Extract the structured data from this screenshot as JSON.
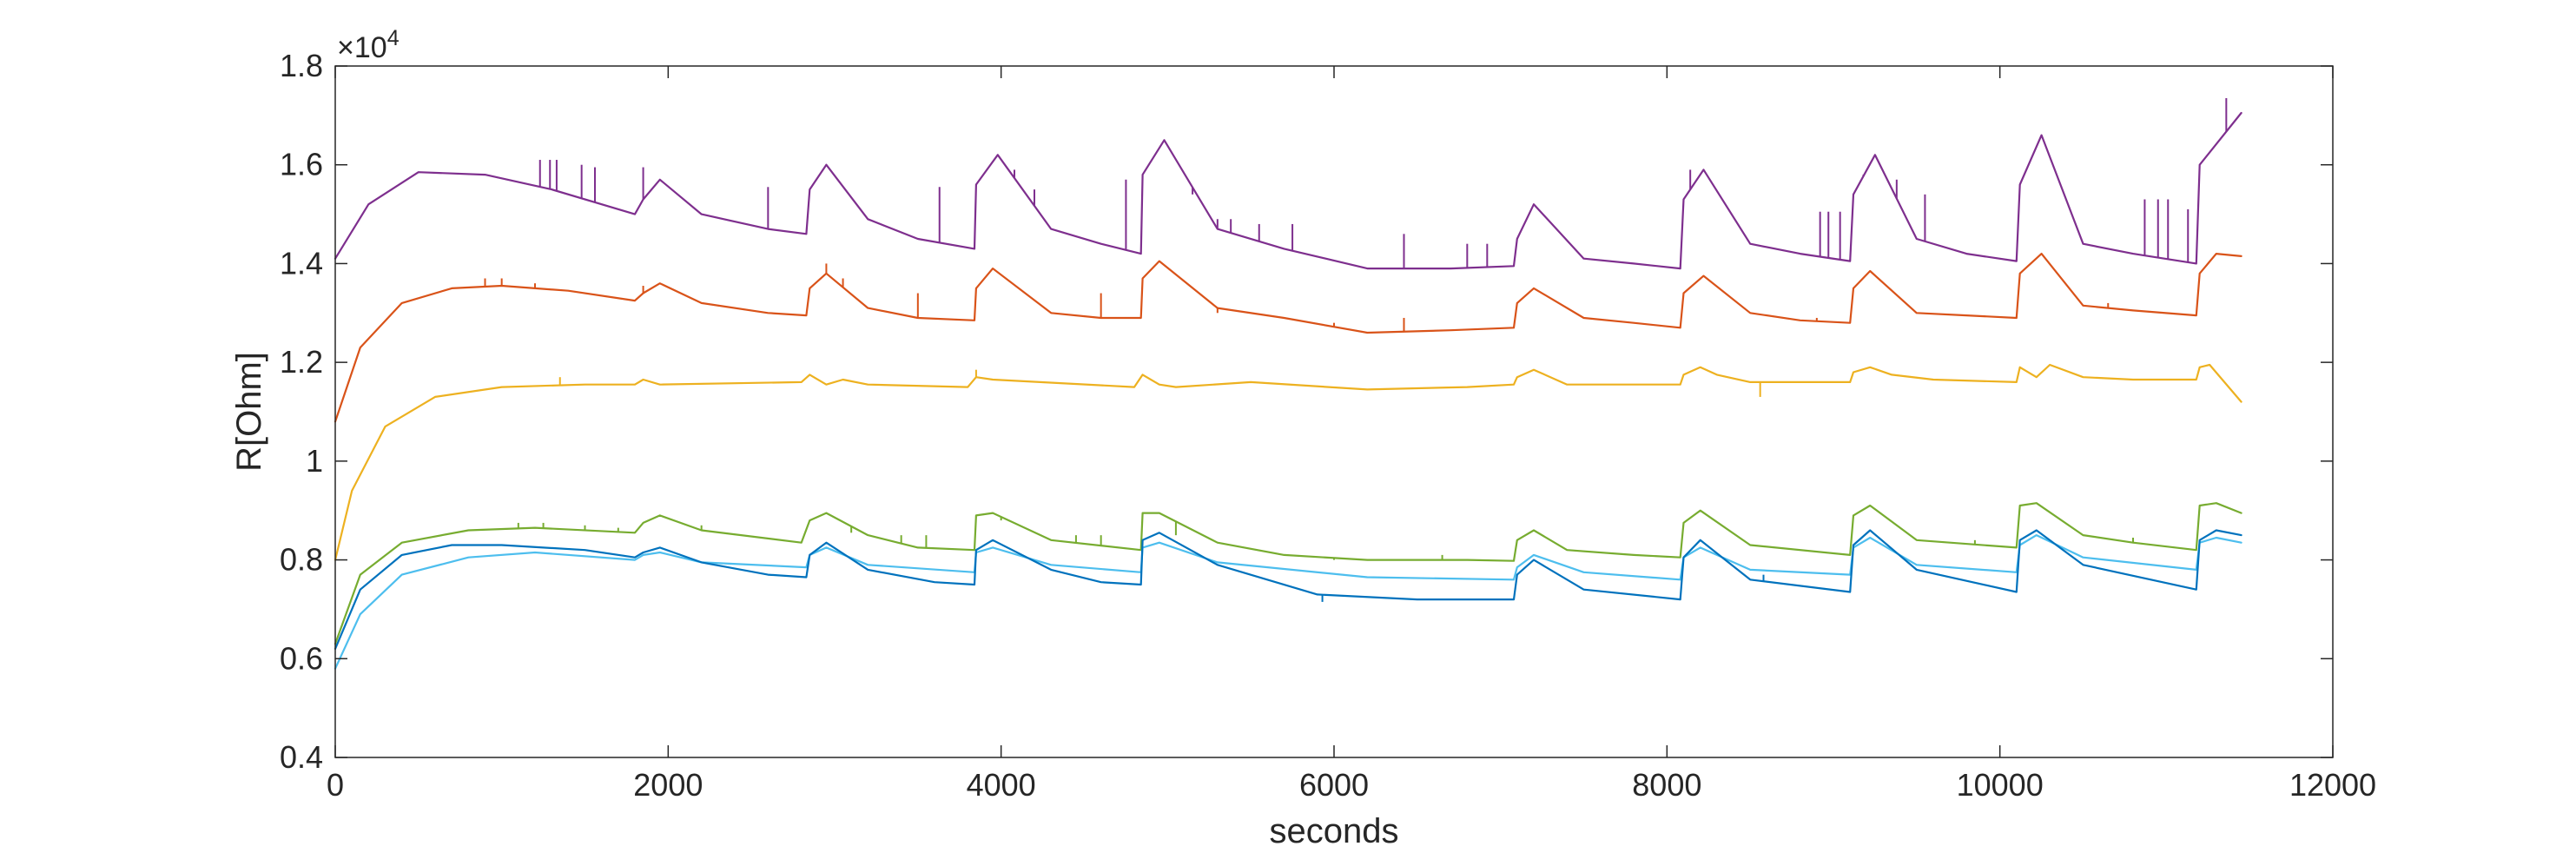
{
  "chart_data": {
    "type": "line",
    "title": "",
    "xlabel": "seconds",
    "ylabel": "R[Ohm]",
    "xlim": [
      0,
      12000
    ],
    "ylim": [
      4000,
      18000
    ],
    "xticks": [
      0,
      2000,
      4000,
      6000,
      8000,
      10000,
      12000
    ],
    "xtick_labels": [
      "0",
      "2000",
      "4000",
      "6000",
      "8000",
      "10000",
      "12000"
    ],
    "yticks": [
      4000,
      6000,
      8000,
      10000,
      12000,
      14000,
      16000,
      18000
    ],
    "ytick_labels": [
      "0.4",
      "0.6",
      "0.8",
      "1",
      "1.2",
      "1.4",
      "1.6",
      "1.8"
    ],
    "y_exponent": {
      "base": "×10",
      "power": "4"
    },
    "grid": false,
    "legend": "none",
    "pulse_times": [
      1850,
      2850,
      3850,
      4850,
      7100,
      8100,
      9120,
      10120,
      11200
    ],
    "series": [
      {
        "color": "#7e2f8e",
        "x": [
          0,
          200,
          500,
          900,
          1300,
          1800,
          1850,
          1950,
          2200,
          2600,
          2830,
          2850,
          2950,
          3200,
          3500,
          3840,
          3850,
          3980,
          4300,
          4600,
          4840,
          4850,
          4980,
          5300,
          5700,
          6200,
          6700,
          7080,
          7100,
          7200,
          7500,
          7800,
          8080,
          8100,
          8220,
          8500,
          8800,
          9100,
          9120,
          9250,
          9500,
          9800,
          10100,
          10120,
          10250,
          10500,
          10800,
          11180,
          11200,
          11450
        ],
        "y": [
          14100,
          15200,
          15850,
          15800,
          15500,
          15000,
          15300,
          15700,
          15000,
          14700,
          14600,
          15500,
          16000,
          14900,
          14500,
          14300,
          15600,
          16200,
          14700,
          14400,
          14200,
          15800,
          16500,
          14700,
          14300,
          13900,
          13900,
          13950,
          14500,
          15200,
          14100,
          14000,
          13900,
          15300,
          15900,
          14400,
          14200,
          14050,
          15400,
          16200,
          14500,
          14200,
          14050,
          15600,
          16600,
          14400,
          14200,
          14000,
          16000,
          17050
        ],
        "spikes": [
          [
            1230,
            16100
          ],
          [
            1290,
            16100
          ],
          [
            1330,
            16100
          ],
          [
            1480,
            16000
          ],
          [
            1560,
            15950
          ],
          [
            1850,
            15950
          ],
          [
            2600,
            15550
          ],
          [
            3630,
            15550
          ],
          [
            4080,
            15900
          ],
          [
            4200,
            15500
          ],
          [
            4750,
            15700
          ],
          [
            5150,
            15400
          ],
          [
            5300,
            14900
          ],
          [
            5380,
            14900
          ],
          [
            5550,
            14800
          ],
          [
            5750,
            14800
          ],
          [
            6420,
            14600
          ],
          [
            6800,
            14400
          ],
          [
            6920,
            14400
          ],
          [
            8140,
            15900
          ],
          [
            8920,
            15050
          ],
          [
            8970,
            15050
          ],
          [
            9040,
            15050
          ],
          [
            9180,
            15800
          ],
          [
            9380,
            15700
          ],
          [
            9550,
            15400
          ],
          [
            10870,
            15300
          ],
          [
            10950,
            15300
          ],
          [
            11010,
            15300
          ],
          [
            11130,
            15100
          ],
          [
            11360,
            17350
          ]
        ]
      },
      {
        "color": "#d95319",
        "x": [
          0,
          150,
          400,
          700,
          1000,
          1400,
          1800,
          1850,
          1950,
          2200,
          2600,
          2830,
          2850,
          2950,
          3200,
          3500,
          3840,
          3850,
          3950,
          4300,
          4600,
          4840,
          4850,
          4950,
          5300,
          5700,
          6200,
          6700,
          7080,
          7100,
          7200,
          7500,
          7800,
          8080,
          8100,
          8220,
          8500,
          8800,
          9100,
          9120,
          9220,
          9500,
          9800,
          10100,
          10120,
          10250,
          10500,
          10800,
          11180,
          11200,
          11300,
          11450
        ],
        "y": [
          10800,
          12300,
          13200,
          13500,
          13550,
          13450,
          13250,
          13400,
          13600,
          13200,
          13000,
          12950,
          13500,
          13800,
          13100,
          12900,
          12850,
          13500,
          13900,
          13000,
          12900,
          12900,
          13700,
          14050,
          13100,
          12900,
          12600,
          12650,
          12700,
          13200,
          13500,
          12900,
          12800,
          12700,
          13400,
          13750,
          13000,
          12850,
          12800,
          13500,
          13850,
          13000,
          12950,
          12900,
          13800,
          14200,
          13150,
          13050,
          12950,
          13800,
          14200,
          14150
        ],
        "spikes": [
          [
            900,
            13700
          ],
          [
            1000,
            13700
          ],
          [
            1200,
            13600
          ],
          [
            1850,
            13550
          ],
          [
            2950,
            14000
          ],
          [
            3050,
            13700
          ],
          [
            3500,
            13400
          ],
          [
            4600,
            13400
          ],
          [
            5300,
            13000
          ],
          [
            6000,
            12800
          ],
          [
            6420,
            12900
          ],
          [
            7840,
            12800
          ],
          [
            8900,
            12900
          ],
          [
            10650,
            13200
          ]
        ]
      },
      {
        "color": "#edb120",
        "x": [
          0,
          100,
          300,
          600,
          1000,
          1500,
          1800,
          1850,
          1950,
          2800,
          2850,
          2950,
          3050,
          3200,
          3800,
          3850,
          3950,
          4800,
          4850,
          4950,
          5050,
          5500,
          6200,
          6800,
          7080,
          7100,
          7200,
          7400,
          8080,
          8100,
          8200,
          8300,
          8500,
          9100,
          9120,
          9220,
          9350,
          9600,
          10100,
          10120,
          10220,
          10300,
          10500,
          10800,
          11180,
          11200,
          11260,
          11450
        ],
        "y": [
          8000,
          9400,
          10700,
          11300,
          11500,
          11550,
          11550,
          11650,
          11550,
          11600,
          11750,
          11550,
          11650,
          11550,
          11500,
          11700,
          11650,
          11500,
          11750,
          11550,
          11500,
          11600,
          11450,
          11500,
          11550,
          11700,
          11850,
          11550,
          11550,
          11750,
          11900,
          11750,
          11600,
          11600,
          11800,
          11900,
          11750,
          11650,
          11600,
          11900,
          11700,
          11950,
          11700,
          11650,
          11650,
          11900,
          11950,
          11200
        ],
        "spikes": [
          [
            1350,
            11700
          ],
          [
            3850,
            11850
          ],
          [
            8560,
            11300
          ]
        ]
      },
      {
        "color": "#77ac30",
        "x": [
          0,
          150,
          400,
          800,
          1200,
          1800,
          1850,
          1950,
          2200,
          2800,
          2850,
          2950,
          3200,
          3500,
          3840,
          3850,
          3950,
          4300,
          4840,
          4850,
          4950,
          5300,
          5700,
          6200,
          6800,
          7080,
          7100,
          7200,
          7400,
          7800,
          8080,
          8100,
          8200,
          8500,
          9100,
          9120,
          9220,
          9500,
          10100,
          10120,
          10220,
          10500,
          10800,
          11180,
          11200,
          11300,
          11450
        ],
        "y": [
          6300,
          7700,
          8350,
          8600,
          8650,
          8550,
          8750,
          8900,
          8600,
          8350,
          8800,
          8950,
          8500,
          8250,
          8200,
          8900,
          8950,
          8400,
          8200,
          8950,
          8950,
          8350,
          8100,
          8000,
          8000,
          7980,
          8400,
          8600,
          8200,
          8100,
          8050,
          8750,
          9000,
          8300,
          8100,
          8900,
          9100,
          8400,
          8250,
          9100,
          9150,
          8500,
          8350,
          8200,
          9100,
          9150,
          8950
        ],
        "spikes": [
          [
            1100,
            8750
          ],
          [
            1250,
            8750
          ],
          [
            1500,
            8700
          ],
          [
            1700,
            8650
          ],
          [
            2200,
            8700
          ],
          [
            3100,
            8550
          ],
          [
            3400,
            8500
          ],
          [
            3550,
            8500
          ],
          [
            4000,
            8800
          ],
          [
            4450,
            8500
          ],
          [
            4600,
            8500
          ],
          [
            5050,
            8500
          ],
          [
            6000,
            8000
          ],
          [
            6200,
            8000
          ],
          [
            6650,
            8100
          ],
          [
            7650,
            8150
          ],
          [
            7800,
            8100
          ],
          [
            9850,
            8400
          ],
          [
            10800,
            8450
          ]
        ]
      },
      {
        "color": "#4dbeee",
        "x": [
          0,
          150,
          400,
          800,
          1200,
          1800,
          1850,
          1950,
          2200,
          2830,
          2850,
          2950,
          3200,
          3840,
          3850,
          3950,
          4300,
          4840,
          4850,
          4950,
          5300,
          6200,
          7080,
          7100,
          7200,
          7500,
          8080,
          8100,
          8200,
          8500,
          9100,
          9120,
          9220,
          9500,
          10100,
          10120,
          10220,
          10500,
          11180,
          11200,
          11300,
          11450
        ],
        "y": [
          5800,
          6900,
          7700,
          8050,
          8150,
          8000,
          8100,
          8150,
          7950,
          7850,
          8100,
          8250,
          7900,
          7750,
          8150,
          8250,
          7900,
          7750,
          8250,
          8350,
          7950,
          7650,
          7600,
          7850,
          8100,
          7750,
          7600,
          8050,
          8250,
          7800,
          7700,
          8250,
          8450,
          7900,
          7750,
          8300,
          8500,
          8050,
          7800,
          8350,
          8450,
          8350
        ],
        "spikes": []
      },
      {
        "color": "#0072bd",
        "x": [
          0,
          150,
          400,
          700,
          1000,
          1500,
          1800,
          1850,
          1950,
          2200,
          2600,
          2830,
          2850,
          2950,
          3200,
          3600,
          3840,
          3850,
          3950,
          4300,
          4600,
          4840,
          4850,
          4950,
          5300,
          5900,
          6500,
          7080,
          7100,
          7200,
          7500,
          8080,
          8100,
          8200,
          8500,
          9100,
          9120,
          9220,
          9500,
          10100,
          10120,
          10220,
          10500,
          11180,
          11200,
          11300,
          11450
        ],
        "y": [
          6200,
          7400,
          8100,
          8300,
          8300,
          8200,
          8050,
          8150,
          8250,
          7950,
          7700,
          7650,
          8100,
          8350,
          7800,
          7550,
          7500,
          8200,
          8400,
          7800,
          7550,
          7500,
          8400,
          8550,
          7900,
          7300,
          7200,
          7200,
          7700,
          8000,
          7400,
          7200,
          8050,
          8400,
          7600,
          7350,
          8300,
          8600,
          7800,
          7350,
          8400,
          8600,
          7900,
          7400,
          8400,
          8600,
          8500
        ],
        "spikes": [
          [
            5930,
            7150
          ],
          [
            8580,
            7700
          ]
        ]
      }
    ]
  }
}
